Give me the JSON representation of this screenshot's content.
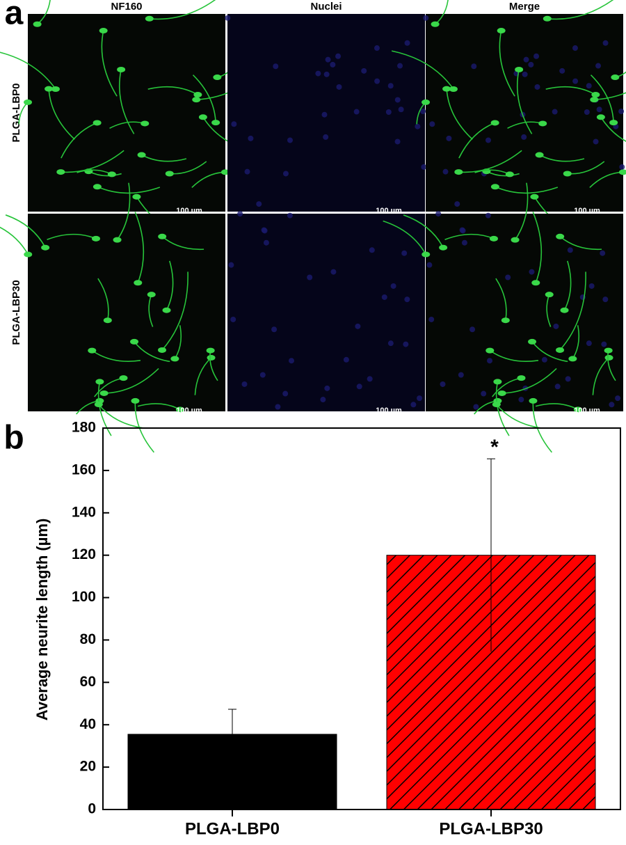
{
  "panel_a": {
    "label": "a",
    "columns": [
      "NF160",
      "Nuclei",
      "Merge"
    ],
    "rows": [
      "PLGA-LBP0",
      "PLGA-LBP30"
    ],
    "scale_bar": "100 µm"
  },
  "chart_data": {
    "type": "bar",
    "panel_label": "b",
    "ylabel": "Average neurite length (µm)",
    "categories": [
      "PLGA-LBP0",
      "PLGA-LBP30"
    ],
    "values": [
      35.5,
      120
    ],
    "errors": [
      11.8,
      45.5
    ],
    "colors": [
      "#000000",
      "#ff0000"
    ],
    "hatch": [
      false,
      true
    ],
    "annotation": "*",
    "ylim": [
      0,
      180
    ],
    "yticks": [
      0,
      20,
      40,
      60,
      80,
      100,
      120,
      140,
      160,
      180
    ]
  }
}
